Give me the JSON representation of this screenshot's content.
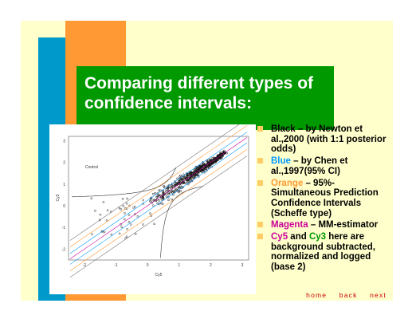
{
  "slide": {
    "title": "Comparing different types of confidence intervals:",
    "colors": {
      "background": "#ffffcc",
      "title_box": "#009900",
      "orange_bar": "#ff9933",
      "blue_bar": "#0099cc",
      "bullet": "#ffcc66",
      "nav": "#cc0000"
    }
  },
  "plot": {
    "annotation": "Control",
    "xlabel": "Cy5",
    "ylabel": "Cy3",
    "x_ticks": [
      "-2",
      "-1",
      "0",
      "1",
      "2",
      "3"
    ],
    "y_ticks": [
      "3",
      "2",
      "1",
      "0",
      "-1",
      "-2"
    ]
  },
  "bullets": [
    {
      "pre": "",
      "colored": "",
      "color": "#000000",
      "mid": "",
      "colored2": "",
      "color2": "#000000",
      "text": "Black – by Newton et al.,2000 (with 1:1 posterior odds)"
    },
    {
      "pre": "",
      "colored": "Blue",
      "color": "#0099ff",
      "mid": "",
      "colored2": "",
      "color2": "#000000",
      "text": " – by Chen et al.,1997(95% CI)"
    },
    {
      "pre": "",
      "colored": "Orange",
      "color": "#ff9933",
      "mid": "",
      "colored2": "",
      "color2": "#000000",
      "text": " – 95%-Simultaneous Prediction Confidence Intervals (Scheffe type)"
    },
    {
      "pre": "",
      "colored": "Magenta",
      "color": "#cc0099",
      "mid": "",
      "colored2": "",
      "color2": "#000000",
      "text": " – MM-estimator"
    },
    {
      "pre": "",
      "colored": "Cy5",
      "color": "#cc0099",
      "mid": " and ",
      "colored2": "Cy3",
      "color2": "#009900",
      "text": " here are background subtracted, normalized and logged (base 2)"
    }
  ],
  "nav": {
    "home": "home",
    "back": "back",
    "next": "next"
  }
}
